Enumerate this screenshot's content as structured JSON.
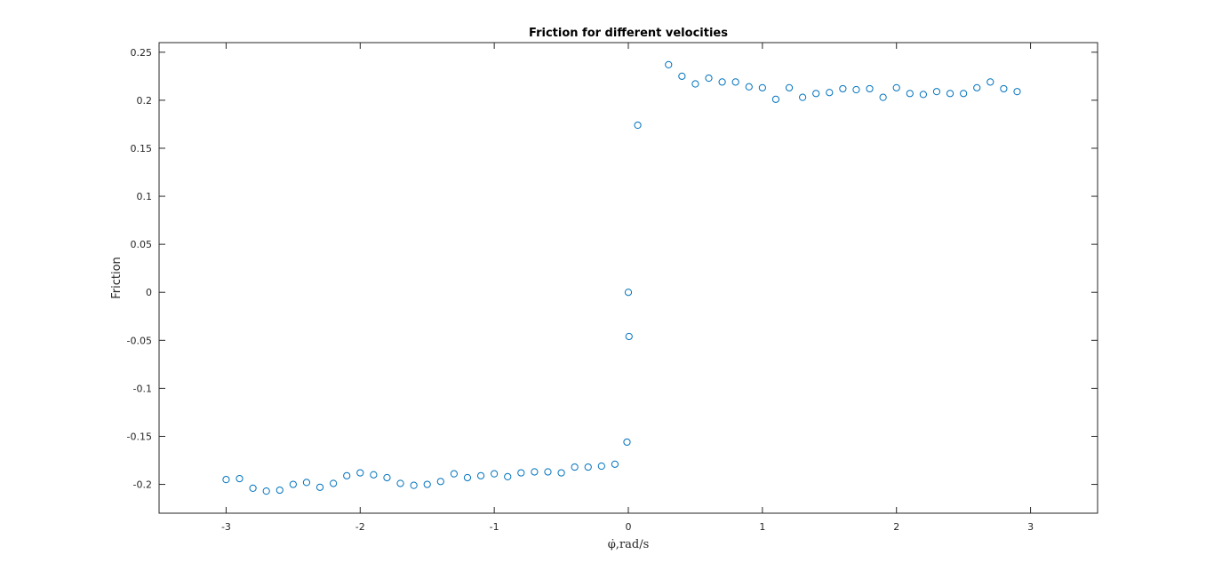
{
  "chart_data": {
    "type": "scatter",
    "title": "Friction for different velocities",
    "xlabel": "φ̇,rad/s",
    "ylabel": "Friction",
    "xlim": [
      -3.5,
      3.5
    ],
    "ylim": [
      -0.23,
      0.26
    ],
    "xticks": [
      -3,
      -2,
      -1,
      0,
      1,
      2,
      3
    ],
    "xtick_labels": [
      "-3",
      "-2",
      "-1",
      "0",
      "1",
      "2",
      "3"
    ],
    "yticks": [
      -0.2,
      -0.15,
      -0.1,
      -0.05,
      0,
      0.05,
      0.1,
      0.15,
      0.2,
      0.25
    ],
    "ytick_labels": [
      "-0.2",
      "-0.15",
      "-0.1",
      "-0.05",
      "0",
      "0.05",
      "0.1",
      "0.15",
      "0.2",
      "0.25"
    ],
    "grid": false,
    "marker": "open-circle",
    "marker_color": "#0072bd",
    "series": [
      {
        "points": [
          [
            -3.0,
            -0.195
          ],
          [
            -2.9,
            -0.194
          ],
          [
            -2.8,
            -0.204
          ],
          [
            -2.7,
            -0.207
          ],
          [
            -2.6,
            -0.206
          ],
          [
            -2.5,
            -0.2
          ],
          [
            -2.4,
            -0.198
          ],
          [
            -2.3,
            -0.203
          ],
          [
            -2.2,
            -0.199
          ],
          [
            -2.1,
            -0.191
          ],
          [
            -2.0,
            -0.188
          ],
          [
            -1.9,
            -0.19
          ],
          [
            -1.8,
            -0.193
          ],
          [
            -1.7,
            -0.199
          ],
          [
            -1.6,
            -0.201
          ],
          [
            -1.5,
            -0.2
          ],
          [
            -1.4,
            -0.197
          ],
          [
            -1.3,
            -0.189
          ],
          [
            -1.2,
            -0.193
          ],
          [
            -1.1,
            -0.191
          ],
          [
            -1.0,
            -0.189
          ],
          [
            -0.9,
            -0.192
          ],
          [
            -0.8,
            -0.188
          ],
          [
            -0.7,
            -0.187
          ],
          [
            -0.6,
            -0.187
          ],
          [
            -0.5,
            -0.188
          ],
          [
            -0.4,
            -0.182
          ],
          [
            -0.3,
            -0.182
          ],
          [
            -0.2,
            -0.181
          ],
          [
            -0.1,
            -0.179
          ],
          [
            -0.01,
            -0.156
          ],
          [
            0.0,
            0.0
          ],
          [
            0.005,
            -0.046
          ],
          [
            0.07,
            0.174
          ],
          [
            0.3,
            0.237
          ],
          [
            0.4,
            0.225
          ],
          [
            0.5,
            0.217
          ],
          [
            0.6,
            0.223
          ],
          [
            0.7,
            0.219
          ],
          [
            0.8,
            0.219
          ],
          [
            0.9,
            0.214
          ],
          [
            1.0,
            0.213
          ],
          [
            1.1,
            0.201
          ],
          [
            1.2,
            0.213
          ],
          [
            1.3,
            0.203
          ],
          [
            1.4,
            0.207
          ],
          [
            1.5,
            0.208
          ],
          [
            1.6,
            0.212
          ],
          [
            1.7,
            0.211
          ],
          [
            1.8,
            0.212
          ],
          [
            1.9,
            0.203
          ],
          [
            2.0,
            0.213
          ],
          [
            2.1,
            0.207
          ],
          [
            2.2,
            0.206
          ],
          [
            2.3,
            0.209
          ],
          [
            2.4,
            0.207
          ],
          [
            2.5,
            0.207
          ],
          [
            2.6,
            0.213
          ],
          [
            2.7,
            0.219
          ],
          [
            2.8,
            0.212
          ],
          [
            2.9,
            0.209
          ]
        ]
      }
    ]
  }
}
